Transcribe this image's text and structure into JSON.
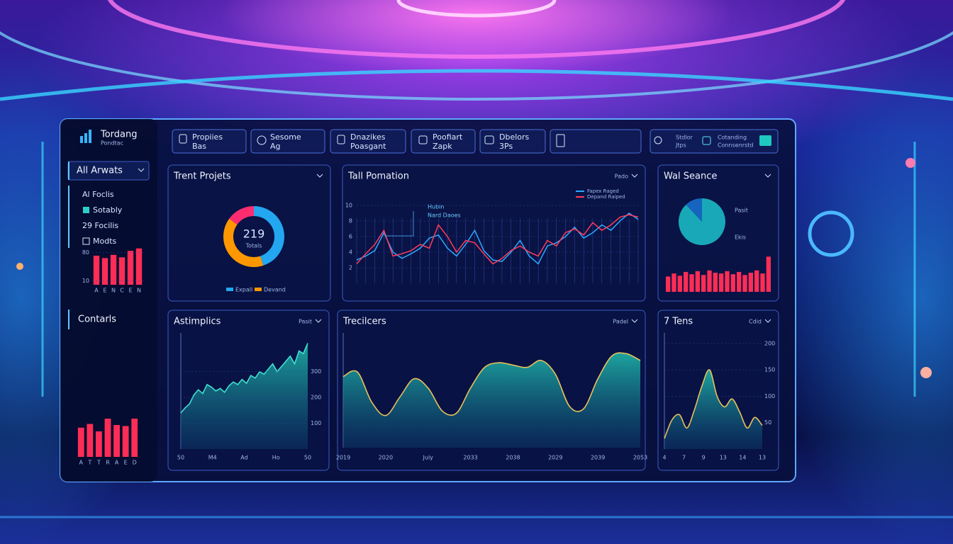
{
  "brand": {
    "name": "Tordang",
    "tagline": "Pondtac"
  },
  "nav": [
    {
      "title": "Propiies",
      "sub": "Bas"
    },
    {
      "title": "Sesome",
      "sub": "Ag"
    },
    {
      "title": "Dnazikes",
      "sub": "Poasgant"
    },
    {
      "title": "Poofiart",
      "sub": "Zapk"
    },
    {
      "title": "Dbelors",
      "sub": "3Ps"
    }
  ],
  "search": {
    "title": "Stdlor",
    "sub": "Jtps"
  },
  "account": {
    "title": "Cotanding",
    "sub": "Connsenrstd"
  },
  "sidebar": {
    "menu": "All Arwats",
    "items": [
      "Al Foclis",
      "Sotably",
      "29 Focilis",
      "Modts"
    ],
    "section": "Contarls"
  },
  "charts": [
    {
      "type": "bar",
      "color": "#ff2d55",
      "categories": [
        "A",
        "E",
        "N",
        "C",
        "E",
        "N"
      ],
      "values": [
        72,
        66,
        74,
        68,
        84,
        90
      ],
      "ylim": [
        0,
        100
      ],
      "yticks": [
        10,
        80
      ]
    },
    {
      "type": "bar",
      "color": "#ff2d55",
      "categories": [
        "A",
        "T",
        "T",
        "R",
        "A",
        "E",
        "D"
      ],
      "values": [
        55,
        62,
        48,
        72,
        60,
        58,
        72
      ],
      "ylim": [
        0,
        100
      ]
    },
    {
      "type": "donut",
      "title": "Trent Projets",
      "center": "219",
      "center_sub": "Totals",
      "values": [
        45,
        40,
        15
      ],
      "colors": [
        "#22a7f0",
        "#ff9800",
        "#ff2d6f"
      ],
      "legend": [
        "Expall",
        "Devand"
      ]
    },
    {
      "type": "line",
      "title": "Tall Pomation",
      "control": "Pado",
      "annotation": [
        "Hubin",
        "Nard Daoes"
      ],
      "ylim": [
        0,
        12
      ],
      "yticks": [
        2,
        4,
        6,
        8,
        10
      ],
      "series": [
        {
          "name": "Fapex Raged",
          "color": "#2aa9ff",
          "values": [
            3,
            3.5,
            4.2,
            6.5,
            4,
            3.2,
            3.8,
            4.5,
            5.8,
            6.2,
            4.5,
            3.5,
            5,
            6.8,
            4.2,
            3,
            2.8,
            4,
            5.5,
            3.5,
            2.5,
            4.8,
            5.2,
            6,
            7.2,
            5.8,
            6.5,
            7.5,
            6.8,
            8,
            9,
            8.2
          ]
        },
        {
          "name": "Depand Raiped",
          "color": "#ff3b5c",
          "values": [
            2.5,
            3.8,
            5,
            6.8,
            3.5,
            3.8,
            4.2,
            5,
            4.5,
            7.5,
            6,
            4,
            5.5,
            5.2,
            3.8,
            2.5,
            3.2,
            4.2,
            4.8,
            4,
            3.5,
            5.5,
            4.8,
            6.5,
            7,
            6.2,
            7.8,
            6.8,
            7.5,
            8.5,
            8.8,
            8.5
          ]
        }
      ]
    },
    {
      "type": "pie",
      "title": "Wal Seance",
      "values": [
        88,
        12
      ],
      "colors": [
        "#19a8b8",
        "#1565c0"
      ],
      "labels": [
        "Pasit",
        "Ekis"
      ],
      "bars": [
        40,
        48,
        42,
        52,
        46,
        54,
        44,
        56,
        50,
        48,
        54,
        46,
        52,
        44,
        50,
        56,
        48,
        92
      ],
      "bar_color": "#ff2d55",
      "bar_max": 100
    },
    {
      "type": "area",
      "title": "Astimplics",
      "control": "Pasit",
      "color": "#3fe0d0",
      "categories": [
        "50",
        "M4",
        "Ad",
        "Ho",
        "50"
      ],
      "values": [
        140,
        160,
        175,
        210,
        230,
        215,
        250,
        240,
        225,
        235,
        220,
        245,
        260,
        250,
        270,
        255,
        285,
        275,
        300,
        290,
        310,
        330,
        300,
        320,
        340,
        360,
        330,
        380,
        370,
        410
      ],
      "ylim": [
        0,
        450
      ],
      "yticks": [
        100,
        200,
        300
      ]
    },
    {
      "type": "area",
      "title": "Trecilcers",
      "control": "Padel",
      "color": "#e8c25a",
      "smooth": true,
      "categories": [
        "2019",
        "2020",
        "July",
        "2033",
        "2038",
        "2029",
        "2039",
        "2053"
      ],
      "values": [
        155,
        165,
        100,
        70,
        110,
        150,
        130,
        80,
        75,
        130,
        175,
        185,
        180,
        175,
        190,
        160,
        90,
        85,
        150,
        200,
        205,
        190
      ],
      "ylim": [
        0,
        250
      ]
    },
    {
      "type": "area",
      "title": "7 Tens",
      "control": "Cdid",
      "color": "#e8c25a",
      "smooth": true,
      "categories": [
        "4",
        "7",
        "9",
        "13",
        "14",
        "13"
      ],
      "values": [
        20,
        55,
        65,
        40,
        75,
        120,
        150,
        100,
        80,
        95,
        70,
        40,
        60,
        45
      ],
      "ylim": [
        0,
        220
      ],
      "yticks": [
        50,
        100,
        150,
        200
      ]
    }
  ]
}
